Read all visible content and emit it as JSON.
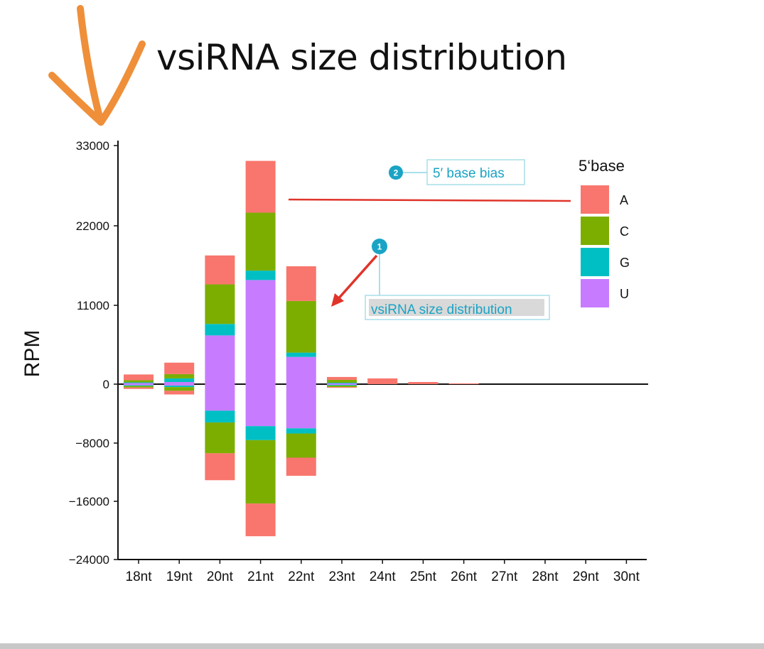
{
  "title": "vsiRNA size distribution",
  "chart_data": {
    "type": "bar",
    "stacked": true,
    "diverging": true,
    "categories": [
      "18nt",
      "19nt",
      "20nt",
      "21nt",
      "22nt",
      "23nt",
      "24nt",
      "25nt",
      "26nt",
      "27nt",
      "28nt",
      "29nt",
      "30nt"
    ],
    "ylabel": "RPM",
    "xlabel": "",
    "yticks": [
      {
        "value": 33000,
        "label": "33000"
      },
      {
        "value": 22000,
        "label": "22000"
      },
      {
        "value": 11000,
        "label": "11000"
      },
      {
        "value": 0,
        "label": "0"
      },
      {
        "value": -8000,
        "label": "−8000"
      },
      {
        "value": -16000,
        "label": "−16000"
      },
      {
        "value": -24000,
        "label": "−24000"
      }
    ],
    "ylim": [
      -24000,
      33000
    ],
    "legend": {
      "title": "5‘base",
      "position": "right"
    },
    "series": [
      {
        "name": "U",
        "color": "#c77cff",
        "positive": [
          150,
          300,
          6800,
          14500,
          3800,
          100,
          0,
          0,
          0,
          0,
          0,
          0,
          0
        ],
        "negative": [
          -150,
          -200,
          -3600,
          -5700,
          -6000,
          -100,
          0,
          0,
          0,
          0,
          0,
          0,
          0
        ]
      },
      {
        "name": "G",
        "color": "#00bfc4",
        "positive": [
          100,
          500,
          1600,
          1300,
          600,
          100,
          0,
          0,
          0,
          0,
          0,
          0,
          0
        ],
        "negative": [
          -100,
          -200,
          -1600,
          -1900,
          -700,
          -100,
          0,
          0,
          0,
          0,
          0,
          0,
          0
        ]
      },
      {
        "name": "C",
        "color": "#7cae00",
        "positive": [
          300,
          600,
          5500,
          8000,
          7200,
          400,
          0,
          0,
          0,
          0,
          0,
          0,
          0
        ],
        "negative": [
          -200,
          -500,
          -4200,
          -8700,
          -3300,
          -200,
          0,
          0,
          0,
          0,
          0,
          0,
          0
        ]
      },
      {
        "name": "A",
        "color": "#f8766d",
        "positive": [
          800,
          1600,
          4000,
          7100,
          4800,
          400,
          800,
          300,
          100,
          0,
          0,
          0,
          0
        ],
        "negative": [
          -200,
          -500,
          -3700,
          -4500,
          -2500,
          -100,
          0,
          0,
          0,
          0,
          0,
          0,
          0
        ]
      }
    ],
    "annotations": [
      {
        "badge": "2",
        "text": "5′ base bias"
      },
      {
        "badge": "1",
        "text": "vsiRNA size distribution"
      }
    ]
  }
}
